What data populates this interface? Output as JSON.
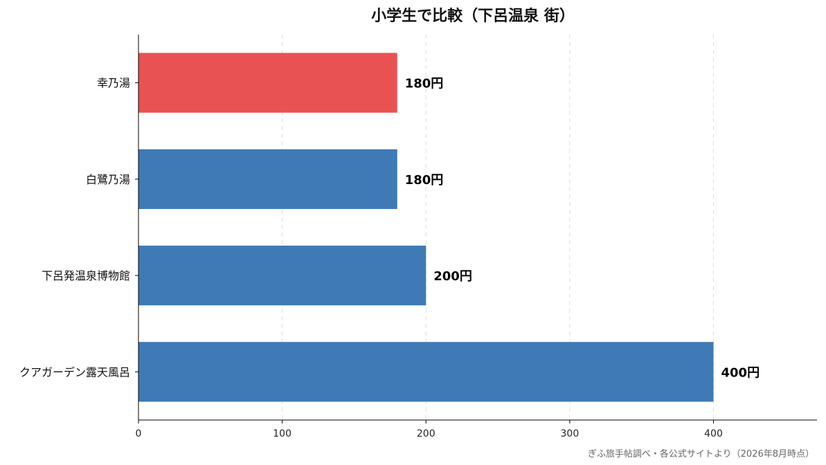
{
  "chart_data": {
    "type": "bar",
    "orientation": "horizontal",
    "title": "小学生で比較（下呂温泉 街）",
    "xlabel": "",
    "ylabel": "",
    "categories": [
      "幸乃湯",
      "白鷺乃湯",
      "下呂発温泉博物館",
      "クアガーデン露天風呂"
    ],
    "values": [
      180,
      180,
      200,
      400
    ],
    "value_labels": [
      "180円",
      "180円",
      "200円",
      "400円"
    ],
    "bar_colors": [
      "#e85252",
      "#3f7ab6",
      "#3f7ab6",
      "#3f7ab6"
    ],
    "xlim": [
      0,
      472
    ],
    "xticks": [
      0,
      100,
      200,
      300,
      400
    ],
    "grid": "vertical-dashed",
    "legend": "none"
  },
  "source_note": "ぎふ旅手帖調べ・各公式サイトより（2026年8月時点）"
}
